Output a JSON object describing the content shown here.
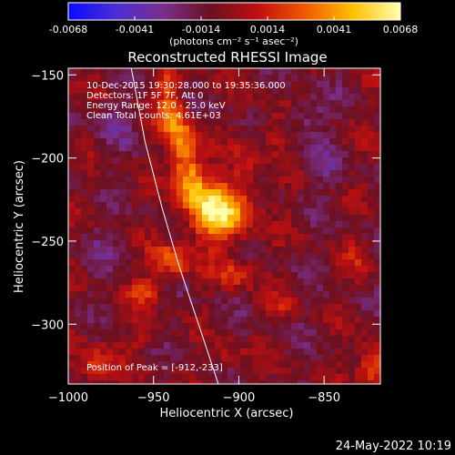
{
  "colorbar": {
    "ticks": [
      "-0.0068",
      "-0.0041",
      "-0.0014",
      "0.0014",
      "0.0041",
      "0.0068"
    ],
    "units": "(photons cm⁻² s⁻¹ asec⁻²)",
    "colors": [
      "#0a0aff",
      "#4a2fd6",
      "#7a2f8a",
      "#6b1020",
      "#c01010",
      "#f05a00",
      "#ffc000",
      "#ffffb0"
    ]
  },
  "image": {
    "title": "Reconstructed RHESSI Image",
    "info": [
      "10-Dec-2015 19:30:28.000 to 19:35:36.000",
      "Detectors: 1F 5F 7F, Att 0",
      "Energy Range: 12.0 - 25.0 keV",
      "Clean      Total counts: 4.61E+03"
    ],
    "peak_label": "Position of Peak = [-912,-233]",
    "date_stamp": "24-May-2022 10:19"
  },
  "chart_data": {
    "type": "heatmap",
    "title": "Reconstructed RHESSI Image",
    "xlabel": "Heliocentric X (arcsec)",
    "ylabel": "Heliocentric Y (arcsec)",
    "xlim": [
      -1000,
      -817
    ],
    "ylim": [
      -336,
      -146
    ],
    "x_ticks": [
      -1000,
      -950,
      -900,
      -850
    ],
    "y_ticks": [
      -150,
      -200,
      -250,
      -300
    ],
    "x_tick_labels": [
      "−1000",
      "−950",
      "−900",
      "−850"
    ],
    "y_tick_labels": [
      "−150",
      "−200",
      "−250",
      "−300"
    ],
    "value_range": [
      -0.0068,
      0.0068
    ],
    "peak": [
      -912,
      -233
    ],
    "sources": [
      {
        "x": -912,
        "y": -233,
        "amp": 0.0068,
        "sx": 12,
        "sy": 12
      },
      {
        "x": -928,
        "y": -215,
        "amp": 0.0045,
        "sx": 7,
        "sy": 11
      },
      {
        "x": -932,
        "y": -195,
        "amp": 0.004,
        "sx": 6,
        "sy": 10
      },
      {
        "x": -938,
        "y": -178,
        "amp": 0.0035,
        "sx": 6,
        "sy": 10
      },
      {
        "x": -942,
        "y": -158,
        "amp": 0.003,
        "sx": 5,
        "sy": 8
      },
      {
        "x": -940,
        "y": -262,
        "amp": 0.004,
        "sx": 8,
        "sy": 7
      },
      {
        "x": -955,
        "y": -280,
        "amp": 0.003,
        "sx": 6,
        "sy": 5
      },
      {
        "x": -902,
        "y": -270,
        "amp": 0.0025,
        "sx": 8,
        "sy": 7
      },
      {
        "x": -895,
        "y": -210,
        "amp": 0.002,
        "sx": 6,
        "sy": 12
      },
      {
        "x": -880,
        "y": -185,
        "amp": 0.0022,
        "sx": 6,
        "sy": 8
      },
      {
        "x": -985,
        "y": -325,
        "amp": 0.003,
        "sx": 8,
        "sy": 8
      },
      {
        "x": -822,
        "y": -325,
        "amp": 0.004,
        "sx": 6,
        "sy": 10
      },
      {
        "x": -955,
        "y": -305,
        "amp": 0.002,
        "sx": 6,
        "sy": 6
      },
      {
        "x": -905,
        "y": -320,
        "amp": 0.0015,
        "sx": 8,
        "sy": 6
      },
      {
        "x": -875,
        "y": -290,
        "amp": 0.0012,
        "sx": 8,
        "sy": 6
      },
      {
        "x": -830,
        "y": -260,
        "amp": 0.0015,
        "sx": 6,
        "sy": 8
      },
      {
        "x": -860,
        "y": -175,
        "amp": -0.002,
        "sx": 8,
        "sy": 8
      },
      {
        "x": -850,
        "y": -205,
        "amp": -0.0015,
        "sx": 8,
        "sy": 8
      },
      {
        "x": -975,
        "y": -180,
        "amp": -0.0015,
        "sx": 8,
        "sy": 10
      },
      {
        "x": -985,
        "y": -255,
        "amp": -0.0012,
        "sx": 8,
        "sy": 10
      }
    ],
    "limb_curve": [
      [
        -963,
        -146
      ],
      [
        -955,
        -190
      ],
      [
        -945,
        -230
      ],
      [
        -935,
        -265
      ],
      [
        -922,
        -305
      ],
      [
        -912,
        -336
      ]
    ]
  }
}
